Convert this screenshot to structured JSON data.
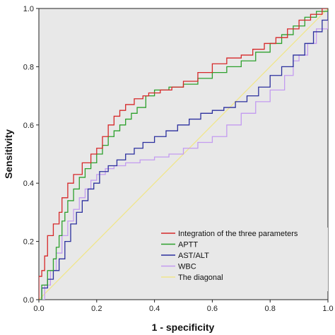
{
  "chart_data": {
    "type": "line",
    "xlabel": "1 - specificity",
    "ylabel": "Sensitivity",
    "xlim": [
      0,
      1
    ],
    "ylim": [
      0,
      1
    ],
    "x_ticks": [
      "0.0",
      "0.2",
      "0.4",
      "0.6",
      "0.8",
      "1.0"
    ],
    "y_ticks": [
      "0.0",
      "0.2",
      "0.4",
      "0.6",
      "0.8",
      "1.0"
    ],
    "grid": false,
    "legend_position": "bottom-right",
    "series": [
      {
        "name": "Integration of the three parameters",
        "color": "#d62728",
        "points": [
          [
            0,
            0
          ],
          [
            0,
            0.08
          ],
          [
            0.01,
            0.1
          ],
          [
            0.02,
            0.15
          ],
          [
            0.03,
            0.22
          ],
          [
            0.05,
            0.26
          ],
          [
            0.07,
            0.3
          ],
          [
            0.08,
            0.35
          ],
          [
            0.1,
            0.4
          ],
          [
            0.12,
            0.43
          ],
          [
            0.15,
            0.47
          ],
          [
            0.18,
            0.5
          ],
          [
            0.2,
            0.52
          ],
          [
            0.22,
            0.56
          ],
          [
            0.24,
            0.6
          ],
          [
            0.26,
            0.63
          ],
          [
            0.28,
            0.65
          ],
          [
            0.3,
            0.67
          ],
          [
            0.33,
            0.69
          ],
          [
            0.36,
            0.7
          ],
          [
            0.38,
            0.71
          ],
          [
            0.42,
            0.72
          ],
          [
            0.46,
            0.73
          ],
          [
            0.5,
            0.75
          ],
          [
            0.55,
            0.78
          ],
          [
            0.6,
            0.81
          ],
          [
            0.65,
            0.83
          ],
          [
            0.7,
            0.84
          ],
          [
            0.74,
            0.86
          ],
          [
            0.78,
            0.88
          ],
          [
            0.82,
            0.9
          ],
          [
            0.86,
            0.93
          ],
          [
            0.9,
            0.96
          ],
          [
            0.94,
            0.98
          ],
          [
            0.98,
            1.0
          ],
          [
            1,
            1
          ]
        ]
      },
      {
        "name": "APTT",
        "color": "#2ca02c",
        "points": [
          [
            0,
            0
          ],
          [
            0.01,
            0.05
          ],
          [
            0.03,
            0.1
          ],
          [
            0.05,
            0.14
          ],
          [
            0.06,
            0.18
          ],
          [
            0.07,
            0.22
          ],
          [
            0.08,
            0.27
          ],
          [
            0.09,
            0.3
          ],
          [
            0.1,
            0.34
          ],
          [
            0.12,
            0.38
          ],
          [
            0.14,
            0.42
          ],
          [
            0.16,
            0.45
          ],
          [
            0.18,
            0.47
          ],
          [
            0.2,
            0.5
          ],
          [
            0.22,
            0.53
          ],
          [
            0.24,
            0.56
          ],
          [
            0.26,
            0.58
          ],
          [
            0.28,
            0.6
          ],
          [
            0.3,
            0.62
          ],
          [
            0.32,
            0.64
          ],
          [
            0.34,
            0.66
          ],
          [
            0.37,
            0.7
          ],
          [
            0.4,
            0.72
          ],
          [
            0.45,
            0.73
          ],
          [
            0.5,
            0.74
          ],
          [
            0.55,
            0.76
          ],
          [
            0.6,
            0.78
          ],
          [
            0.65,
            0.8
          ],
          [
            0.7,
            0.82
          ],
          [
            0.75,
            0.85
          ],
          [
            0.8,
            0.88
          ],
          [
            0.84,
            0.91
          ],
          [
            0.88,
            0.94
          ],
          [
            0.92,
            0.97
          ],
          [
            0.96,
            0.99
          ],
          [
            1,
            1
          ]
        ]
      },
      {
        "name": "AST/ALT",
        "color": "#2b2f9e",
        "points": [
          [
            0,
            0
          ],
          [
            0.01,
            0.04
          ],
          [
            0.03,
            0.07
          ],
          [
            0.05,
            0.1
          ],
          [
            0.07,
            0.14
          ],
          [
            0.09,
            0.2
          ],
          [
            0.11,
            0.26
          ],
          [
            0.13,
            0.3
          ],
          [
            0.15,
            0.34
          ],
          [
            0.17,
            0.38
          ],
          [
            0.19,
            0.4
          ],
          [
            0.21,
            0.44
          ],
          [
            0.24,
            0.46
          ],
          [
            0.27,
            0.48
          ],
          [
            0.3,
            0.5
          ],
          [
            0.33,
            0.52
          ],
          [
            0.36,
            0.54
          ],
          [
            0.4,
            0.56
          ],
          [
            0.44,
            0.58
          ],
          [
            0.48,
            0.6
          ],
          [
            0.52,
            0.62
          ],
          [
            0.56,
            0.64
          ],
          [
            0.6,
            0.65
          ],
          [
            0.64,
            0.66
          ],
          [
            0.68,
            0.68
          ],
          [
            0.72,
            0.7
          ],
          [
            0.76,
            0.73
          ],
          [
            0.8,
            0.77
          ],
          [
            0.84,
            0.8
          ],
          [
            0.88,
            0.84
          ],
          [
            0.92,
            0.88
          ],
          [
            0.95,
            0.92
          ],
          [
            0.98,
            0.96
          ],
          [
            1,
            1
          ]
        ]
      },
      {
        "name": "WBC",
        "color": "#c39bf0",
        "points": [
          [
            0,
            0
          ],
          [
            0.02,
            0.05
          ],
          [
            0.04,
            0.1
          ],
          [
            0.06,
            0.16
          ],
          [
            0.08,
            0.22
          ],
          [
            0.1,
            0.27
          ],
          [
            0.12,
            0.31
          ],
          [
            0.14,
            0.35
          ],
          [
            0.16,
            0.38
          ],
          [
            0.18,
            0.41
          ],
          [
            0.2,
            0.43
          ],
          [
            0.23,
            0.45
          ],
          [
            0.26,
            0.46
          ],
          [
            0.3,
            0.47
          ],
          [
            0.35,
            0.48
          ],
          [
            0.4,
            0.49
          ],
          [
            0.45,
            0.5
          ],
          [
            0.5,
            0.52
          ],
          [
            0.55,
            0.54
          ],
          [
            0.6,
            0.56
          ],
          [
            0.65,
            0.6
          ],
          [
            0.7,
            0.64
          ],
          [
            0.75,
            0.68
          ],
          [
            0.8,
            0.72
          ],
          [
            0.85,
            0.77
          ],
          [
            0.88,
            0.82
          ],
          [
            0.9,
            0.84
          ],
          [
            0.93,
            0.88
          ],
          [
            0.96,
            0.93
          ],
          [
            1,
            1
          ]
        ]
      },
      {
        "name": "The diagonal",
        "color": "#f0e68c",
        "points": [
          [
            0,
            0
          ],
          [
            1,
            1
          ]
        ]
      }
    ]
  }
}
